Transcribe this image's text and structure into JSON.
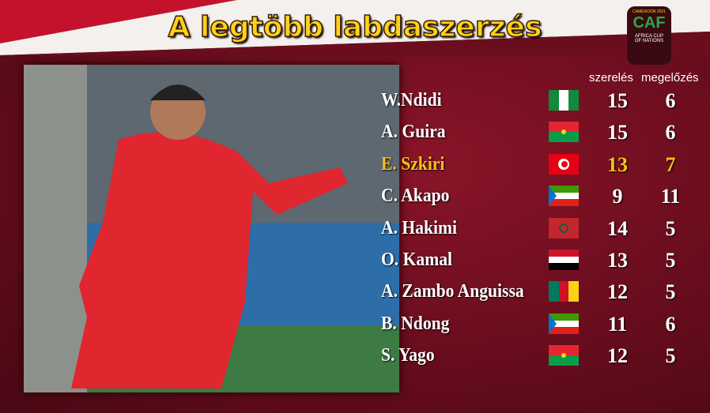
{
  "header": {
    "title": "A legtöbb labdaszerzés"
  },
  "logo": {
    "top": "CAMEROON 2021",
    "name": "CAF",
    "sub": "AFRICA CUP OF NATIONS"
  },
  "table": {
    "columns": [
      "szerelés",
      "megelőzés"
    ],
    "rows": [
      [
        "W.Ndidi",
        15,
        6
      ],
      [
        "A. Guira",
        15,
        6
      ],
      [
        "E. Szkiri",
        13,
        7
      ],
      [
        "C. Akapo",
        9,
        11
      ],
      [
        "A. Hakimi",
        14,
        5
      ],
      [
        "O. Kamal",
        13,
        5
      ],
      [
        "A. Zambo Anguissa",
        12,
        5
      ],
      [
        "B. Ndong",
        11,
        6
      ],
      [
        "S. Yago",
        12,
        5
      ]
    ]
  }
}
